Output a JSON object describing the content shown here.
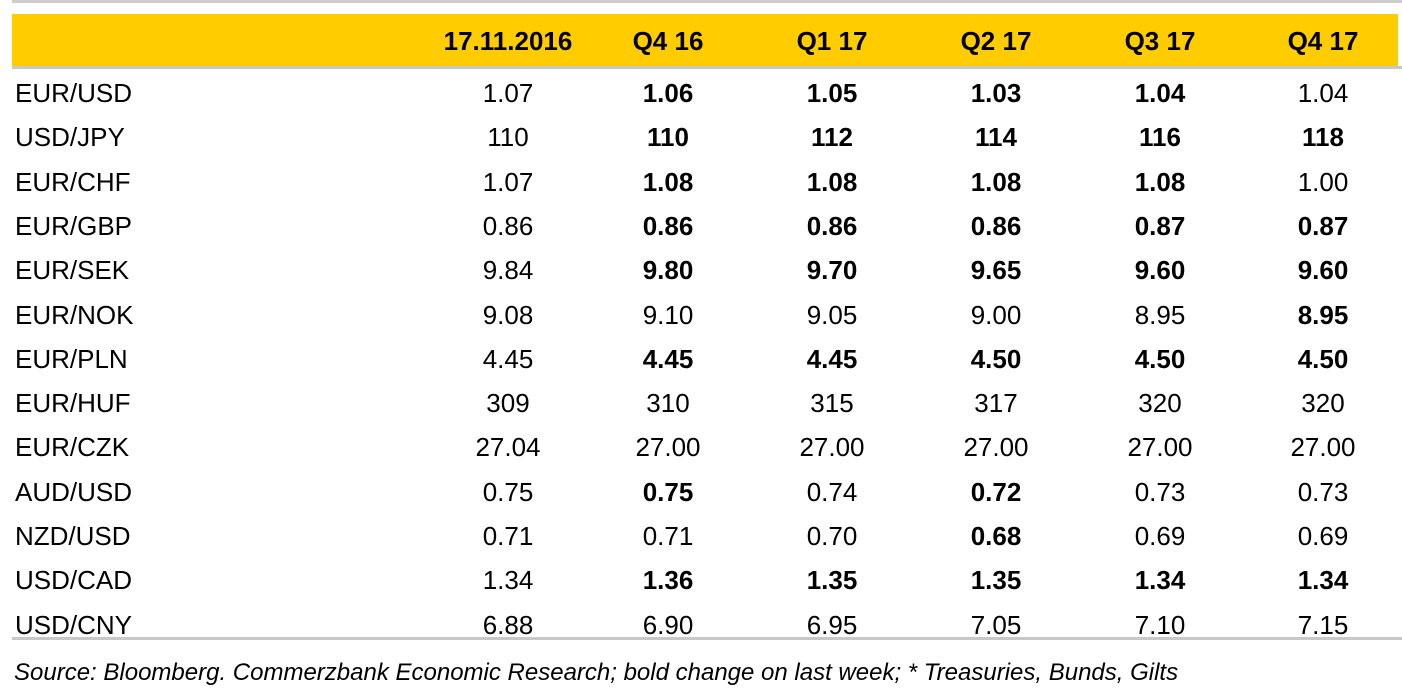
{
  "table": {
    "header": [
      "17.11.2016",
      "Q4 16",
      "Q1 17",
      "Q2 17",
      "Q3 17",
      "Q4 17"
    ],
    "rows": [
      {
        "label": "EUR/USD",
        "values": [
          "1.07",
          "1.06",
          "1.05",
          "1.03",
          "1.04",
          "1.04"
        ],
        "bold": [
          false,
          true,
          true,
          true,
          true,
          false
        ]
      },
      {
        "label": "USD/JPY",
        "values": [
          "110",
          "110",
          "112",
          "114",
          "116",
          "118"
        ],
        "bold": [
          false,
          true,
          true,
          true,
          true,
          true
        ]
      },
      {
        "label": "EUR/CHF",
        "values": [
          "1.07",
          "1.08",
          "1.08",
          "1.08",
          "1.08",
          "1.00"
        ],
        "bold": [
          false,
          true,
          true,
          true,
          true,
          false
        ]
      },
      {
        "label": "EUR/GBP",
        "values": [
          "0.86",
          "0.86",
          "0.86",
          "0.86",
          "0.87",
          "0.87"
        ],
        "bold": [
          false,
          true,
          true,
          true,
          true,
          true
        ]
      },
      {
        "label": "EUR/SEK",
        "values": [
          "9.84",
          "9.80",
          "9.70",
          "9.65",
          "9.60",
          "9.60"
        ],
        "bold": [
          false,
          true,
          true,
          true,
          true,
          true
        ]
      },
      {
        "label": "EUR/NOK",
        "values": [
          "9.08",
          "9.10",
          "9.05",
          "9.00",
          "8.95",
          "8.95"
        ],
        "bold": [
          false,
          false,
          false,
          false,
          false,
          true
        ]
      },
      {
        "label": "EUR/PLN",
        "values": [
          "4.45",
          "4.45",
          "4.45",
          "4.50",
          "4.50",
          "4.50"
        ],
        "bold": [
          false,
          true,
          true,
          true,
          true,
          true
        ]
      },
      {
        "label": "EUR/HUF",
        "values": [
          "309",
          "310",
          "315",
          "317",
          "320",
          "320"
        ],
        "bold": [
          false,
          false,
          false,
          false,
          false,
          false
        ]
      },
      {
        "label": "EUR/CZK",
        "values": [
          "27.04",
          "27.00",
          "27.00",
          "27.00",
          "27.00",
          "27.00"
        ],
        "bold": [
          false,
          false,
          false,
          false,
          false,
          false
        ]
      },
      {
        "label": "AUD/USD",
        "values": [
          "0.75",
          "0.75",
          "0.74",
          "0.72",
          "0.73",
          "0.73"
        ],
        "bold": [
          false,
          true,
          false,
          true,
          false,
          false
        ]
      },
      {
        "label": "NZD/USD",
        "values": [
          "0.71",
          "0.71",
          "0.70",
          "0.68",
          "0.69",
          "0.69"
        ],
        "bold": [
          false,
          false,
          false,
          true,
          false,
          false
        ]
      },
      {
        "label": "USD/CAD",
        "values": [
          "1.34",
          "1.36",
          "1.35",
          "1.35",
          "1.34",
          "1.34"
        ],
        "bold": [
          false,
          true,
          true,
          true,
          true,
          true
        ]
      },
      {
        "label": "USD/CNY",
        "values": [
          "6.88",
          "6.90",
          "6.95",
          "7.05",
          "7.10",
          "7.15"
        ],
        "bold": [
          false,
          false,
          false,
          false,
          false,
          false
        ]
      }
    ],
    "source": "Source: Bloomberg. Commerzbank Economic Research; bold change on last week; * Treasuries, Bunds, Gilts"
  }
}
